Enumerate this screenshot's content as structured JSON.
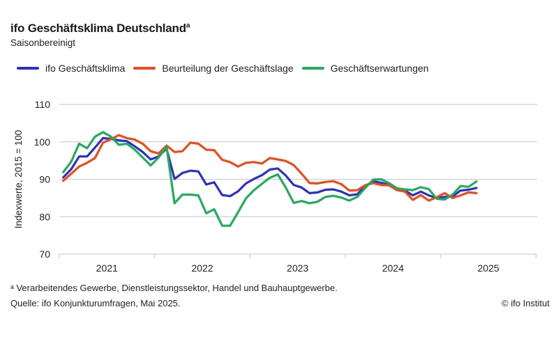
{
  "chart_data": {
    "type": "line",
    "title": "ifo Geschäftsklima Deutschland",
    "title_footnote_mark": "a",
    "subtitle": "Saisonbereinigt",
    "xlabel": "",
    "ylabel": "Indexwerte, 2015 = 100",
    "ylim": [
      70,
      110
    ],
    "yticks": [
      70,
      80,
      90,
      100,
      110
    ],
    "xticks": [
      "2021",
      "2022",
      "2023",
      "2024",
      "2025"
    ],
    "x_start": "2021-01",
    "x_frequency": "monthly",
    "grid": true,
    "legend_position": "top-left",
    "series": [
      {
        "name": "ifo Geschäftsklima",
        "color": "#2b2fc9",
        "values": [
          90.5,
          92.7,
          96.1,
          96.1,
          98.5,
          101.0,
          100.8,
          100.4,
          100.2,
          98.8,
          97.3,
          95.3,
          96.1,
          98.2,
          90.1,
          91.7,
          92.3,
          92.1,
          88.6,
          89.2,
          85.8,
          85.5,
          86.8,
          88.9,
          90.1,
          91.1,
          92.6,
          92.9,
          91.0,
          88.5,
          87.8,
          86.3,
          86.5,
          87.2,
          87.3,
          86.7,
          85.7,
          86.0,
          88.2,
          89.4,
          89.1,
          88.5,
          87.3,
          87.0,
          85.7,
          86.7,
          85.7,
          85.0,
          85.3,
          85.4,
          87.0,
          87.2,
          87.7
        ]
      },
      {
        "name": "Beurteilung der Geschäftslage",
        "color": "#ef4a18",
        "values": [
          89.6,
          91.5,
          93.4,
          94.4,
          95.7,
          99.8,
          100.7,
          101.8,
          101.0,
          100.6,
          99.5,
          97.5,
          96.9,
          99.0,
          97.3,
          97.5,
          99.8,
          99.5,
          97.9,
          97.8,
          95.2,
          94.6,
          93.4,
          94.4,
          94.6,
          94.2,
          95.7,
          95.3,
          94.9,
          93.8,
          91.5,
          89.0,
          88.9,
          89.3,
          89.5,
          88.7,
          87.0,
          87.1,
          88.4,
          89.0,
          88.5,
          88.4,
          87.1,
          86.7,
          84.5,
          85.8,
          84.3,
          85.2,
          86.3,
          85.0,
          85.7,
          86.5,
          86.3
        ]
      },
      {
        "name": "Geschäftserwartungen",
        "color": "#1fae5a",
        "values": [
          91.9,
          94.7,
          99.5,
          98.3,
          101.4,
          102.6,
          101.4,
          99.2,
          99.5,
          97.9,
          95.8,
          93.7,
          95.8,
          98.7,
          83.6,
          85.9,
          85.9,
          85.7,
          80.9,
          82.0,
          77.6,
          77.6,
          81.2,
          84.9,
          87.1,
          88.8,
          90.4,
          91.3,
          87.8,
          83.7,
          84.2,
          83.6,
          84.0,
          85.3,
          85.6,
          85.1,
          84.3,
          85.3,
          87.7,
          89.9,
          90.0,
          89.0,
          87.6,
          87.3,
          87.1,
          87.9,
          87.4,
          84.8,
          84.6,
          85.9,
          88.2,
          88.0,
          89.4
        ]
      }
    ]
  },
  "footnote": "ᵃ Verarbeitendes Gewerbe, Dienstleistungssektor, Handel und Bauhauptgewerbe.",
  "source": "Quelle: ifo Konjunkturumfragen, Mai 2025.",
  "copyright": "© ifo Institut"
}
